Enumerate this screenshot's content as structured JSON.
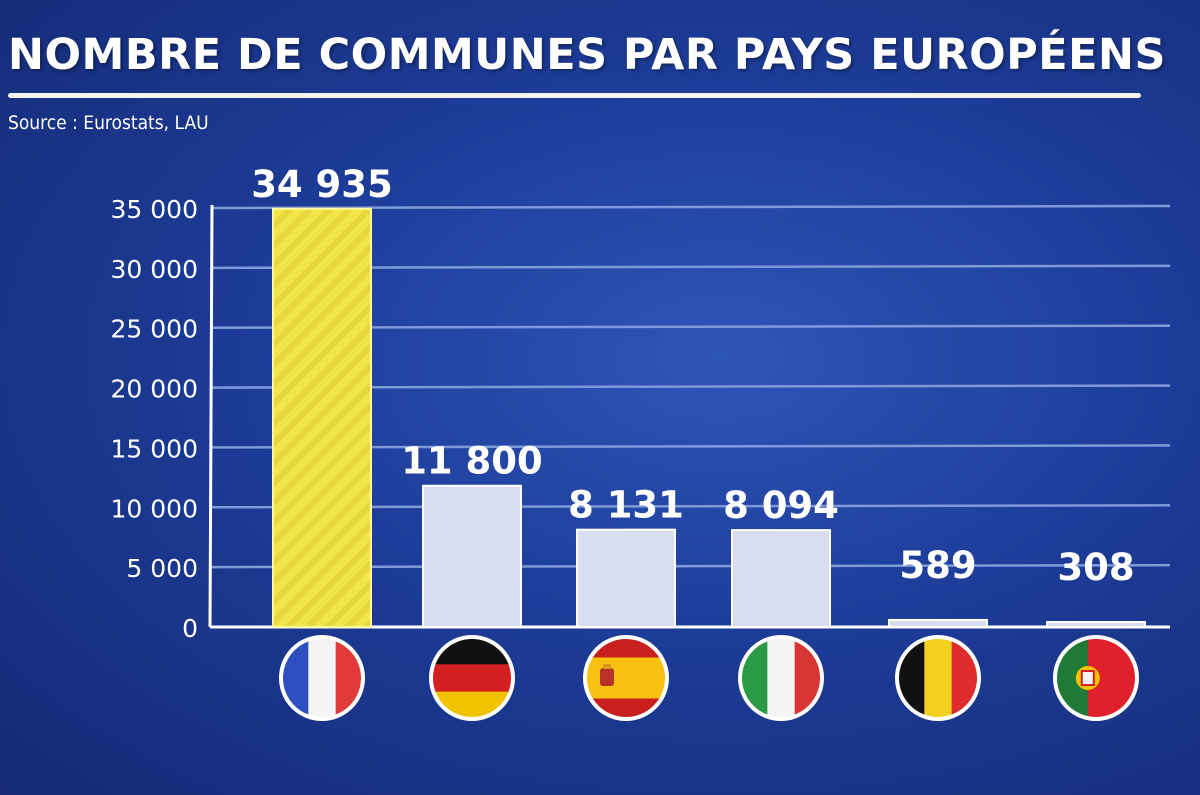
{
  "header": {
    "title": "NOMBRE DE COMMUNES PAR PAYS EUROPÉENS",
    "source": "Source : Eurostats, LAU"
  },
  "colors": {
    "highlight_bar": "#f2e54a",
    "default_bar": "#d6deef",
    "gridline": "#7f9ad8",
    "highlight_label": "#ffef3a",
    "label": "#ffffff"
  },
  "chart_data": {
    "type": "bar",
    "title": "NOMBRE DE COMMUNES PAR PAYS EUROPÉENS",
    "xlabel": "",
    "ylabel": "",
    "ylim": [
      0,
      35000
    ],
    "yticks": [
      0,
      5000,
      10000,
      15000,
      20000,
      25000,
      30000,
      35000
    ],
    "ytick_labels": [
      "0",
      "5 000",
      "10 000",
      "15 000",
      "20 000",
      "25 000",
      "30 000",
      "35 000"
    ],
    "grid": true,
    "categories": [
      "France",
      "Germany",
      "Spain",
      "Italy",
      "Belgium",
      "Portugal"
    ],
    "category_icons": [
      "flag-france-icon",
      "flag-germany-icon",
      "flag-spain-icon",
      "flag-italy-icon",
      "flag-belgium-icon",
      "flag-portugal-icon"
    ],
    "values": [
      34935,
      11800,
      8131,
      8094,
      589,
      308
    ],
    "value_labels": [
      "34 935",
      "11 800",
      "8 131",
      "8 094",
      "589",
      "308"
    ],
    "highlight_index": 0
  }
}
